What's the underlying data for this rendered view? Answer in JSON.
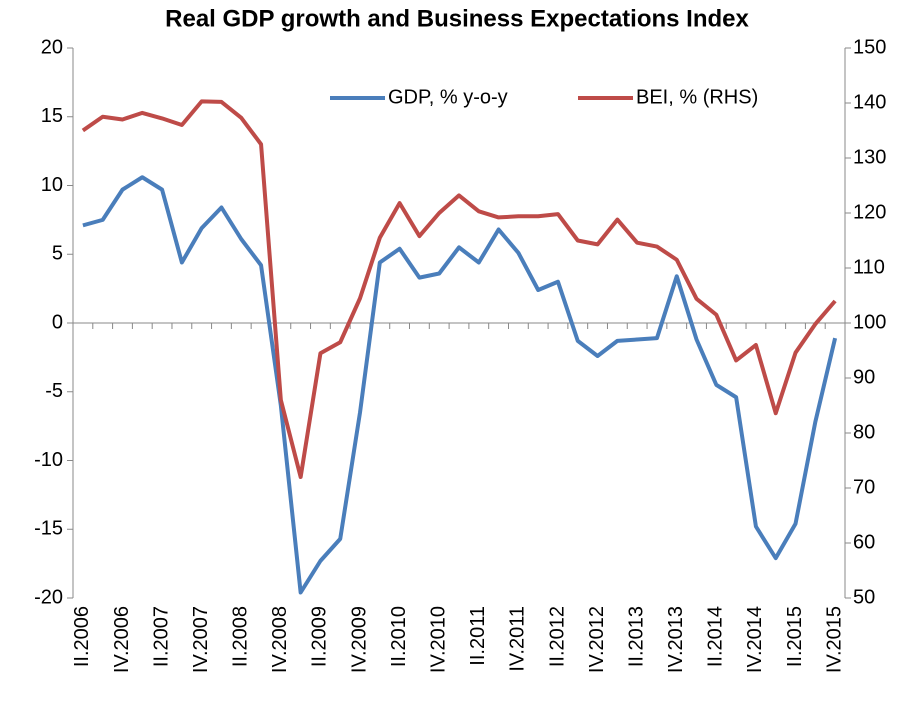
{
  "chart_data": {
    "type": "line",
    "title": "Real GDP growth and Business Expectations Index",
    "categories": [
      "II.2006",
      null,
      "IV.2006",
      null,
      "II.2007",
      null,
      "IV.2007",
      null,
      "II.2008",
      null,
      "IV.2008",
      null,
      "II.2009",
      null,
      "IV.2009",
      null,
      "II.2010",
      null,
      "IV.2010",
      null,
      "II.2011",
      null,
      "IV.2011",
      null,
      "II.2012",
      null,
      "IV.2012",
      null,
      "II.2013",
      null,
      "IV.2013",
      null,
      "II.2014",
      null,
      "IV.2014",
      null,
      "II.2015",
      null,
      "IV.2015"
    ],
    "series": [
      {
        "name": "GDP, % y-o-y",
        "color": "#4a7ebb",
        "values": [
          7.1,
          7.5,
          9.7,
          10.6,
          9.7,
          4.4,
          6.9,
          8.4,
          6.1,
          4.2,
          -6,
          -19.6,
          -17.3,
          -15.7,
          -6.5,
          4.4,
          5.4,
          3.3,
          3.6,
          5.5,
          4.4,
          6.8,
          5.1,
          2.4,
          3.0,
          -1.3,
          -2.4,
          -1.3,
          -1.2,
          -1.1,
          3.4,
          -1.2,
          -4.5,
          -5.4,
          -14.8,
          -17.1,
          -14.6,
          -7.2,
          -1.1
        ]
      },
      {
        "name": "BEI, % (RHS)",
        "color": "#be4b48",
        "axis": "y2",
        "values": [
          135,
          137.5,
          137,
          138.2,
          137.2,
          136,
          140.3,
          140.2,
          137.3,
          132.5,
          86,
          72,
          94.5,
          96.5,
          104.5,
          115.5,
          121.8,
          115.8,
          120,
          123.2,
          120.3,
          119.2,
          119.4,
          119.4,
          119.8,
          115,
          114.3,
          118.8,
          114.6,
          113.9,
          111.5,
          104.4,
          101.5,
          93.2,
          96,
          83.6,
          94.6,
          99.8,
          104
        ]
      }
    ],
    "ylim": [
      -20,
      20
    ],
    "yticks": [
      -20,
      -15,
      -10,
      -5,
      0,
      5,
      10,
      15,
      20
    ],
    "y2lim": [
      50,
      150
    ],
    "y2ticks": [
      50,
      60,
      70,
      80,
      90,
      100,
      110,
      120,
      130,
      140,
      150
    ],
    "legend": "top-right"
  }
}
